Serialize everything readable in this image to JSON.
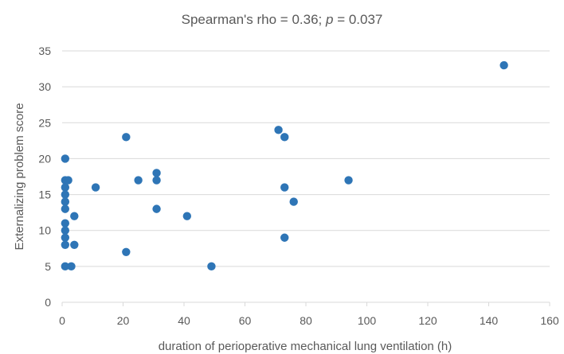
{
  "chart_data": {
    "type": "scatter",
    "title": {
      "prefix": "Spearman's rho = 0.36; ",
      "p_symbol": "p",
      "suffix": " = 0.037"
    },
    "xlabel": "duration of perioperative mechanical lung ventilation (h)",
    "ylabel": "Externalizing problem score",
    "xlim": [
      0,
      160
    ],
    "ylim": [
      0,
      35
    ],
    "xticks": [
      "0",
      "20",
      "40",
      "60",
      "80",
      "100",
      "120",
      "140",
      "160"
    ],
    "yticks": [
      "0",
      "5",
      "10",
      "15",
      "20",
      "25",
      "30",
      "35"
    ],
    "grid": "horizontal",
    "marker_color": "#2e75b6",
    "points": [
      {
        "x": 1,
        "y": 20
      },
      {
        "x": 1,
        "y": 17
      },
      {
        "x": 2,
        "y": 17
      },
      {
        "x": 1,
        "y": 16
      },
      {
        "x": 1,
        "y": 15
      },
      {
        "x": 1,
        "y": 14
      },
      {
        "x": 1,
        "y": 13
      },
      {
        "x": 1,
        "y": 11
      },
      {
        "x": 1,
        "y": 10
      },
      {
        "x": 1,
        "y": 9
      },
      {
        "x": 1,
        "y": 8
      },
      {
        "x": 1,
        "y": 5
      },
      {
        "x": 3,
        "y": 5
      },
      {
        "x": 4,
        "y": 12
      },
      {
        "x": 4,
        "y": 8
      },
      {
        "x": 11,
        "y": 16
      },
      {
        "x": 21,
        "y": 23
      },
      {
        "x": 21,
        "y": 7
      },
      {
        "x": 25,
        "y": 17
      },
      {
        "x": 31,
        "y": 18
      },
      {
        "x": 31,
        "y": 17
      },
      {
        "x": 31,
        "y": 13
      },
      {
        "x": 41,
        "y": 12
      },
      {
        "x": 49,
        "y": 5
      },
      {
        "x": 71,
        "y": 24
      },
      {
        "x": 73,
        "y": 23
      },
      {
        "x": 73,
        "y": 16
      },
      {
        "x": 76,
        "y": 14
      },
      {
        "x": 73,
        "y": 9
      },
      {
        "x": 94,
        "y": 17
      },
      {
        "x": 145,
        "y": 33
      }
    ]
  }
}
